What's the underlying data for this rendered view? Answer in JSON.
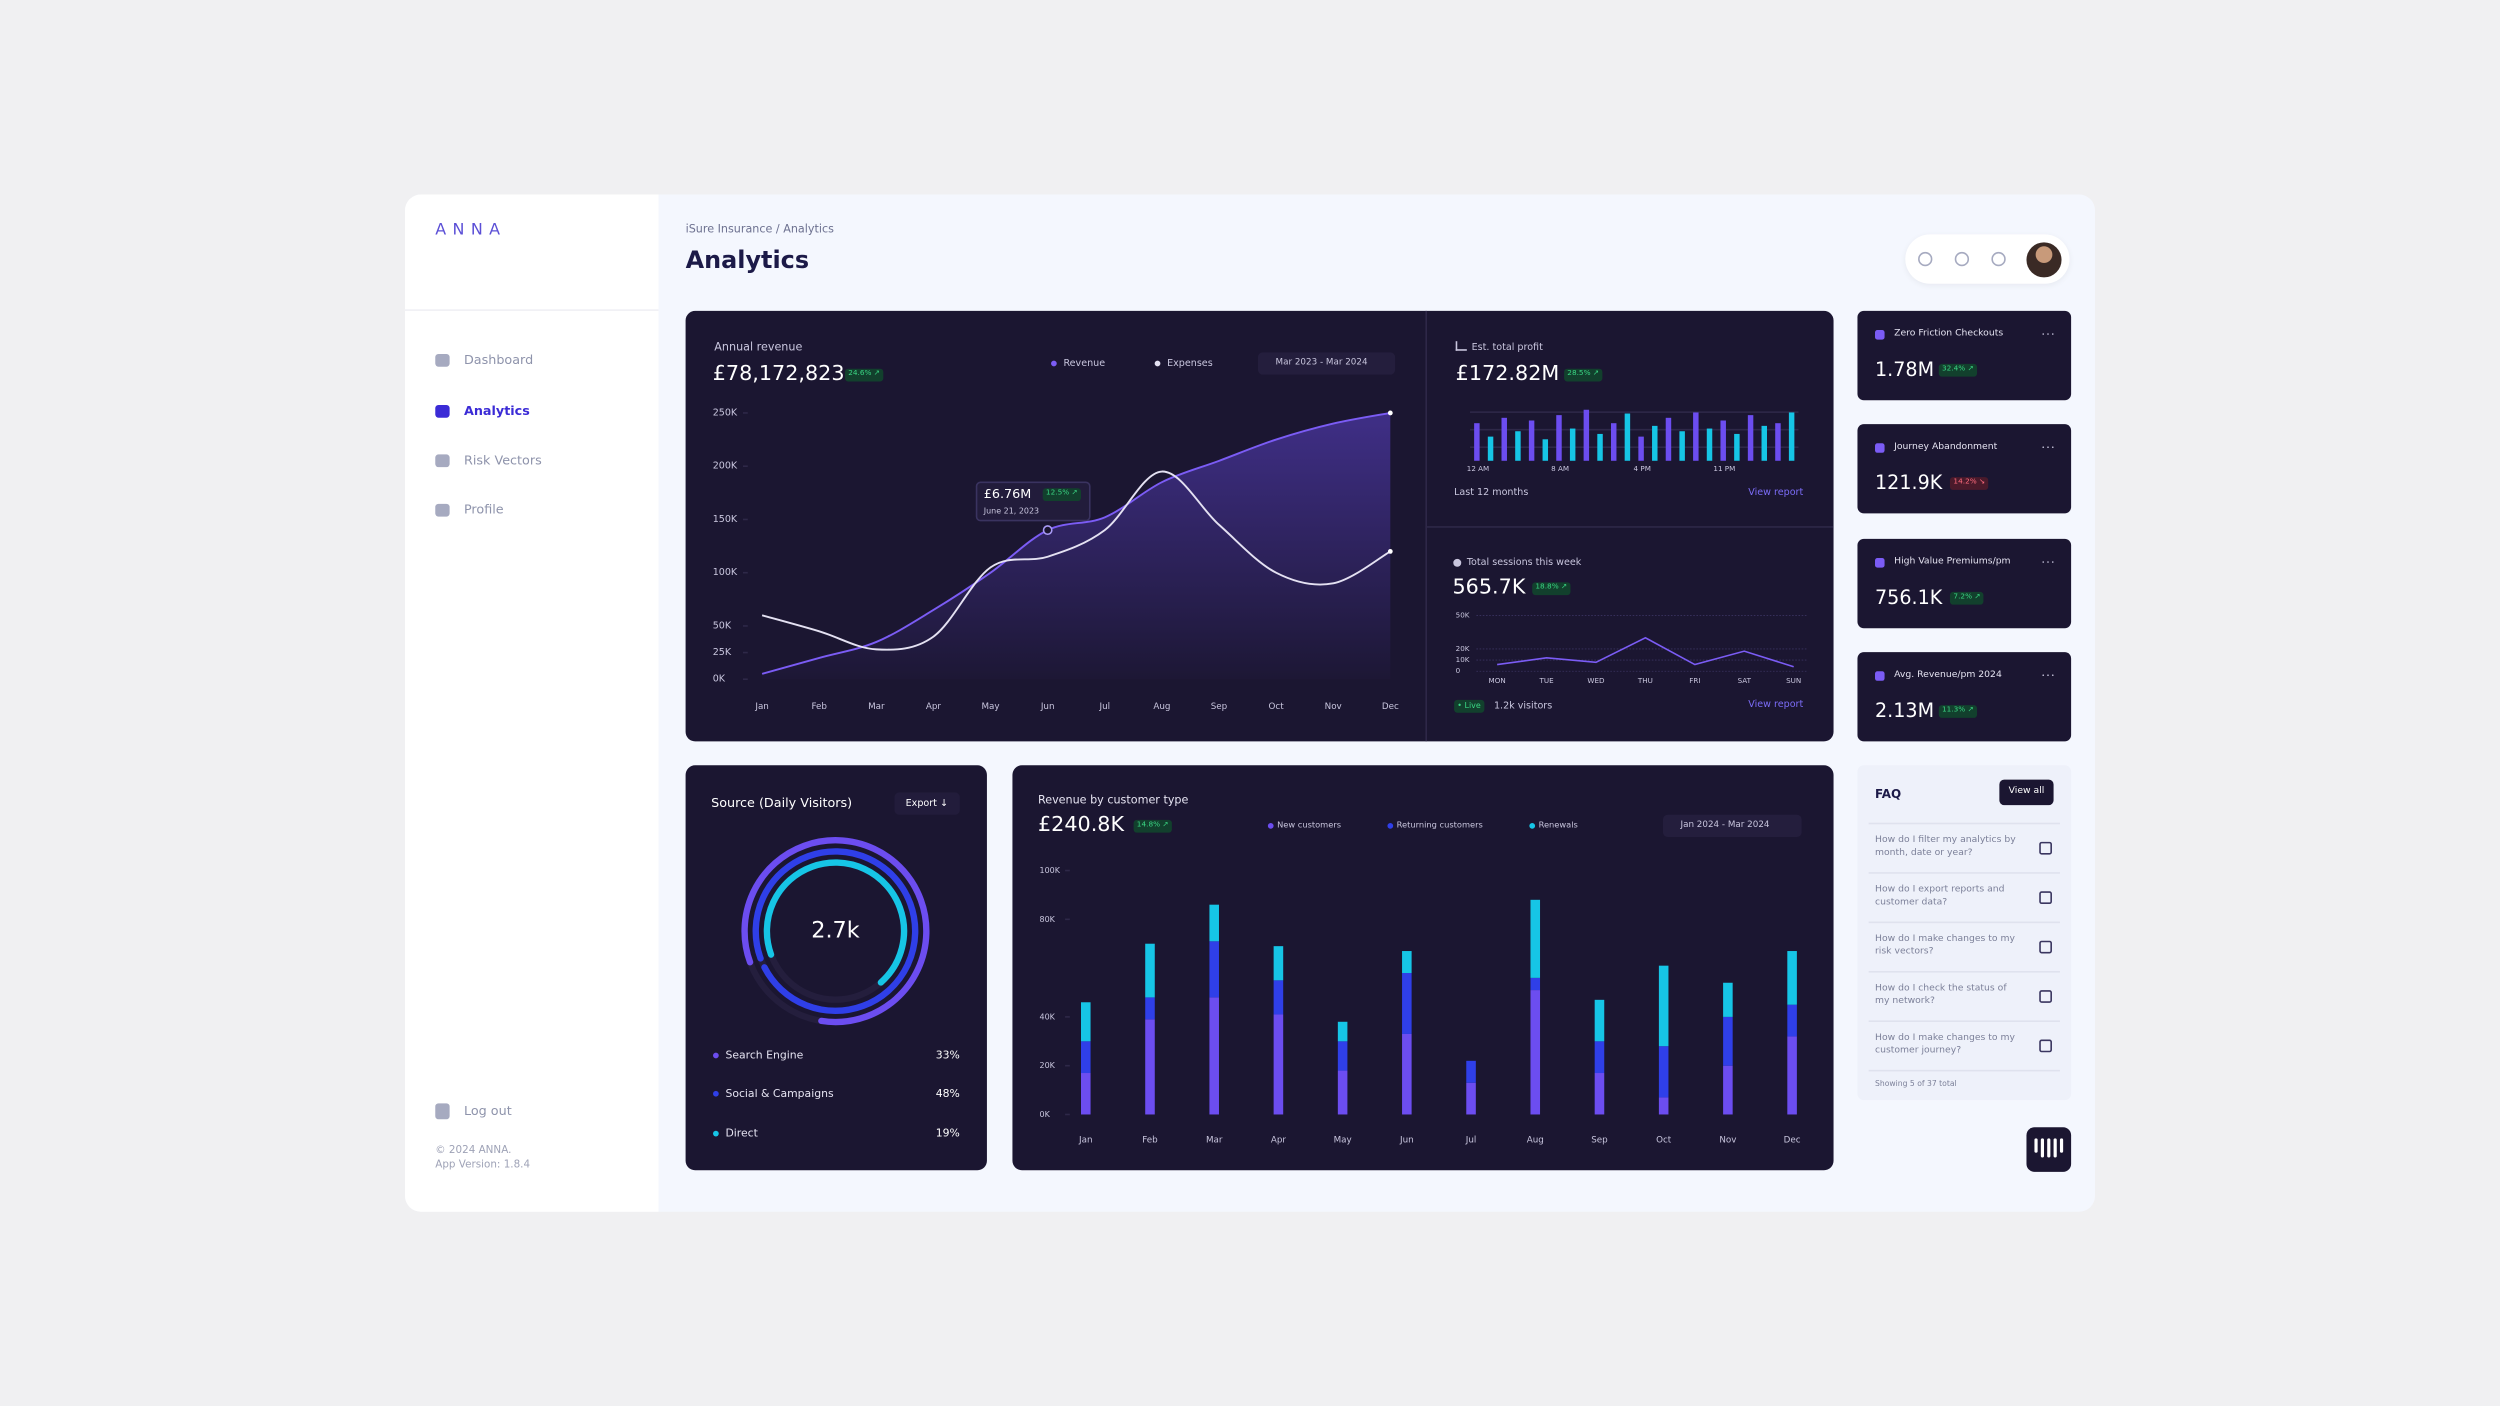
{
  "sidebar": {
    "brand": "ANNA",
    "nav": [
      "Dashboard",
      "Analytics",
      "Risk Vectors",
      "Profile"
    ],
    "active": 1,
    "logout": "Log out",
    "copyright": "© 2024 ANNA.",
    "version": "App Version: 1.8.4"
  },
  "header": {
    "breadcrumb": "iSure Insurance / Analytics",
    "title": "Analytics"
  },
  "revenue": {
    "label": "Annual revenue",
    "total": "£78,172,823",
    "change": "24.6% ↗",
    "date_range": "Mar 2023 - Mar 2024",
    "tooltip": {
      "value": "£6.76M",
      "change": "12.5% ↗",
      "date": "June 21, 2023"
    },
    "chart": {
      "type": "line",
      "smooth": true,
      "categories": [
        "Jan",
        "Feb",
        "Mar",
        "Apr",
        "May",
        "Jun",
        "Jul",
        "Aug",
        "Sep",
        "Oct",
        "Nov",
        "Dec"
      ],
      "series": [
        {
          "name": "Revenue",
          "color": "#7b5cf5",
          "values": [
            5000,
            20000,
            35000,
            65000,
            100000,
            140000,
            152000,
            185000,
            205000,
            225000,
            240000,
            250000
          ]
        },
        {
          "name": "Expenses",
          "color": "#e4e1f2",
          "values": [
            60000,
            45000,
            28000,
            40000,
            105000,
            115000,
            140000,
            195000,
            145000,
            100000,
            90000,
            120000
          ]
        }
      ],
      "ylim": [
        0,
        250000
      ],
      "yticks": [
        {
          "value": 0,
          "label": "0K"
        },
        {
          "value": 25000,
          "label": "25K"
        },
        {
          "value": 50000,
          "label": "50K"
        },
        {
          "value": 100000,
          "label": "100K"
        },
        {
          "value": 150000,
          "label": "150K"
        },
        {
          "value": 200000,
          "label": "200K"
        },
        {
          "value": 250000,
          "label": "250K"
        }
      ]
    }
  },
  "profit": {
    "label": "Est. total profit",
    "total": "£172.82M",
    "change": "28.5% ↗",
    "period": "Last 12 months",
    "link": "View report",
    "chart": {
      "type": "bar",
      "x_labels": [
        "12 AM",
        "8 AM",
        "4 PM",
        "11 PM"
      ],
      "colors": [
        "#6c4df0",
        "#16c5e6"
      ],
      "values": [
        70,
        45,
        80,
        55,
        75,
        40,
        85,
        60,
        95,
        50,
        70,
        88,
        45,
        65,
        80,
        55,
        90,
        60,
        75,
        50,
        85,
        65,
        70,
        90
      ]
    }
  },
  "sessions": {
    "label": "Total sessions this week",
    "total": "565.7K",
    "change": "18.8% ↗",
    "live": "• Live",
    "visitors": "1.2k visitors",
    "link": "View report",
    "chart": {
      "type": "line",
      "color": "#7b5cf5",
      "grid": true,
      "categories": [
        "MON",
        "TUE",
        "WED",
        "THU",
        "FRI",
        "SAT",
        "SUN"
      ],
      "values": [
        6000,
        12000,
        8000,
        30000,
        6000,
        18000,
        4000
      ],
      "ylim": [
        0,
        50000
      ],
      "yticks": [
        0,
        {
          "value": 10000,
          "label": "10K"
        },
        {
          "value": 20000,
          "label": "20K"
        },
        {
          "value": 50000,
          "label": "50K"
        }
      ]
    }
  },
  "kpis": [
    {
      "title": "Zero Friction Checkouts",
      "value": "1.78M",
      "change": "32.4% ↗",
      "trend": "up"
    },
    {
      "title": "Journey Abandonment",
      "value": "121.9K",
      "change": "14.2% ↘",
      "trend": "down"
    },
    {
      "title": "High Value Premiums/pm",
      "value": "756.1K",
      "change": "7.2% ↗",
      "trend": "up"
    },
    {
      "title": "Avg. Revenue/pm 2024",
      "value": "2.13M",
      "change": "11.3% ↗",
      "trend": "up"
    }
  ],
  "source": {
    "title": "Source (Daily Visitors)",
    "export": "Export ↓",
    "total": "2.7k",
    "chart": {
      "type": "radial",
      "categories": [
        "Search Engine",
        "Social & Campaigns",
        "Direct"
      ],
      "values": [
        33,
        48,
        19
      ],
      "value_labels": [
        "33%",
        "48%",
        "19%"
      ],
      "colors": [
        "#6c4df0",
        "#2f3fe8",
        "#16c5e6"
      ]
    }
  },
  "customer": {
    "title": "Revenue by customer type",
    "total": "£240.8K",
    "change": "14.8% ↗",
    "date_range": "Jan 2024 - Mar 2024",
    "chart": {
      "type": "bar",
      "stacked": true,
      "categories": [
        "Jan",
        "Feb",
        "Mar",
        "Apr",
        "May",
        "Jun",
        "Jul",
        "Aug",
        "Sep",
        "Oct",
        "Nov",
        "Dec"
      ],
      "series": [
        {
          "name": "New customers",
          "color": "#6c4df0",
          "values": [
            17000,
            39000,
            48000,
            41000,
            18000,
            33000,
            13000,
            51000,
            17000,
            7000,
            20000,
            32000
          ]
        },
        {
          "name": "Returning customers",
          "color": "#2f3fe8",
          "values": [
            13000,
            9000,
            23000,
            14000,
            12000,
            25000,
            9000,
            5000,
            13000,
            21000,
            20000,
            13000
          ]
        },
        {
          "name": "Renewals",
          "color": "#16c5e6",
          "values": [
            16000,
            22000,
            15000,
            14000,
            8000,
            9000,
            0,
            32000,
            17000,
            33000,
            14000,
            22000
          ]
        }
      ],
      "ylim": [
        0,
        100000
      ],
      "yticks": [
        {
          "value": 0,
          "label": "0K"
        },
        {
          "value": 20000,
          "label": "20K"
        },
        {
          "value": 40000,
          "label": "40K"
        },
        {
          "value": 80000,
          "label": "80K"
        },
        {
          "value": 100000,
          "label": "100K"
        }
      ]
    }
  },
  "faq": {
    "title": "FAQ",
    "view_all": "View all",
    "questions": [
      "How do I filter my analytics by month, date or year?",
      "How do I export reports and customer data?",
      "How do I make changes to my risk vectors?",
      "How do I check the status of my network?",
      "How do I make changes to my customer journey?"
    ],
    "footer": "Showing 5 of 37 total"
  }
}
